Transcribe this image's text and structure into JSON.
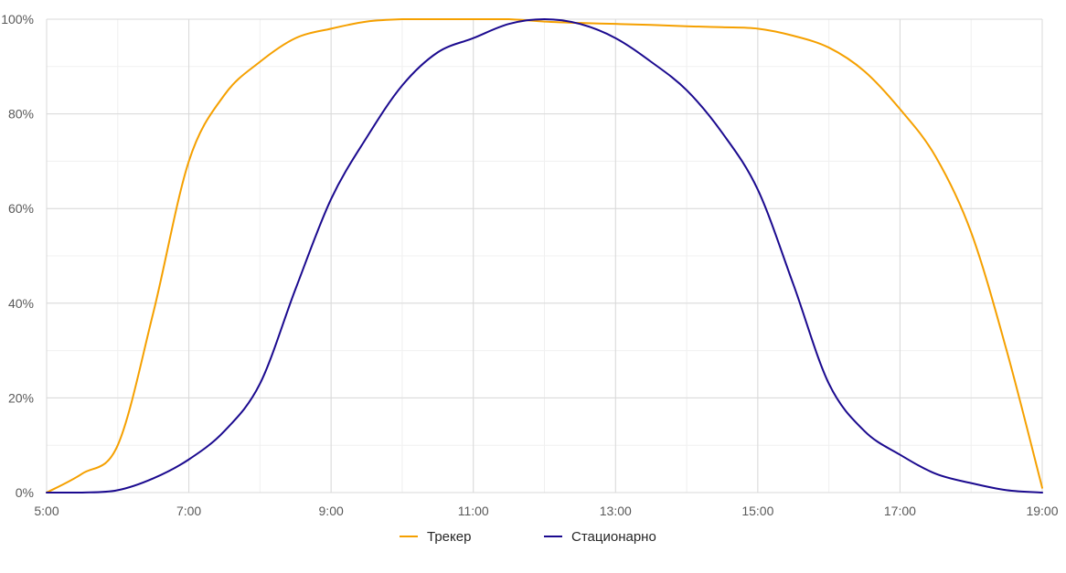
{
  "chart_data": {
    "type": "line",
    "title": "",
    "xlabel": "",
    "ylabel": "",
    "x": [
      5,
      5.5,
      6,
      6.5,
      7,
      7.5,
      8,
      8.5,
      9,
      9.5,
      10,
      10.5,
      11,
      11.5,
      12,
      12.5,
      13,
      13.5,
      14,
      14.5,
      15,
      15.5,
      16,
      16.5,
      17,
      17.5,
      18,
      18.5,
      19
    ],
    "x_tick_values": [
      5,
      7,
      9,
      11,
      13,
      15,
      17,
      19
    ],
    "x_tick_labels": [
      "5:00",
      "7:00",
      "9:00",
      "11:00",
      "13:00",
      "15:00",
      "17:00",
      "19:00"
    ],
    "y_tick_values": [
      0,
      20,
      40,
      60,
      80,
      100
    ],
    "y_tick_labels": [
      "0%",
      "20%",
      "40%",
      "60%",
      "80%",
      "100%"
    ],
    "xlim": [
      5,
      19
    ],
    "ylim": [
      0,
      100
    ],
    "grid": true,
    "legend_position": "bottom",
    "series": [
      {
        "name": "Трекер",
        "color": "#f5a000",
        "values": [
          0,
          4,
          10,
          38,
          70,
          84,
          91,
          96,
          98,
          99.5,
          100,
          100,
          100,
          100,
          99.5,
          99.2,
          99,
          98.8,
          98.5,
          98.3,
          98,
          96.5,
          94,
          89,
          81,
          71,
          55,
          30,
          1
        ]
      },
      {
        "name": "Стационарно",
        "color": "#1b0a8f",
        "values": [
          0,
          0,
          0.5,
          3,
          7,
          13,
          23,
          43,
          62,
          75,
          86,
          93,
          96,
          99,
          100,
          99,
          96,
          91,
          85,
          76,
          64,
          44,
          23,
          13,
          8,
          4,
          2,
          0.5,
          0
        ]
      }
    ]
  }
}
